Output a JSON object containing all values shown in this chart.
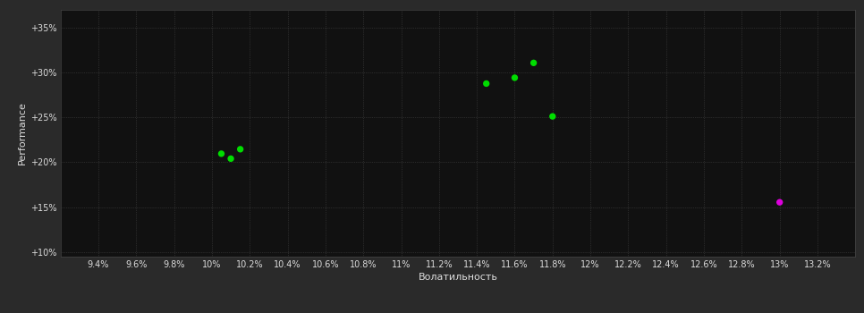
{
  "background_color": "#2a2a2a",
  "plot_bg_color": "#111111",
  "grid_color": "#444444",
  "text_color": "#dddddd",
  "xlabel": "Волатильность",
  "ylabel": "Performance",
  "xlim": [
    0.092,
    0.134
  ],
  "ylim": [
    0.095,
    0.37
  ],
  "xticks": [
    0.094,
    0.096,
    0.098,
    0.1,
    0.102,
    0.104,
    0.106,
    0.108,
    0.11,
    0.112,
    0.114,
    0.116,
    0.118,
    0.12,
    0.122,
    0.124,
    0.126,
    0.128,
    0.13,
    0.132
  ],
  "yticks": [
    0.1,
    0.15,
    0.2,
    0.25,
    0.3,
    0.35
  ],
  "ytick_labels": [
    "+10%",
    "+15%",
    "+20%",
    "+25%",
    "+30%",
    "+35%"
  ],
  "xtick_labels": [
    "9.4%",
    "9.6%",
    "9.8%",
    "10%",
    "10.2%",
    "10.4%",
    "10.6%",
    "10.8%",
    "11%",
    "11.2%",
    "11.4%",
    "11.6%",
    "11.8%",
    "12%",
    "12.2%",
    "12.4%",
    "12.6%",
    "12.8%",
    "13%",
    "13.2%"
  ],
  "green_points": [
    [
      0.1005,
      0.2095
    ],
    [
      0.101,
      0.204
    ],
    [
      0.1015,
      0.2145
    ],
    [
      0.1145,
      0.2875
    ],
    [
      0.116,
      0.294
    ],
    [
      0.117,
      0.3105
    ],
    [
      0.118,
      0.251
    ]
  ],
  "magenta_points": [
    [
      0.13,
      0.1555
    ]
  ],
  "green_color": "#00dd00",
  "magenta_color": "#dd00dd",
  "marker_size": 28,
  "figsize": [
    9.66,
    3.5
  ],
  "dpi": 100
}
